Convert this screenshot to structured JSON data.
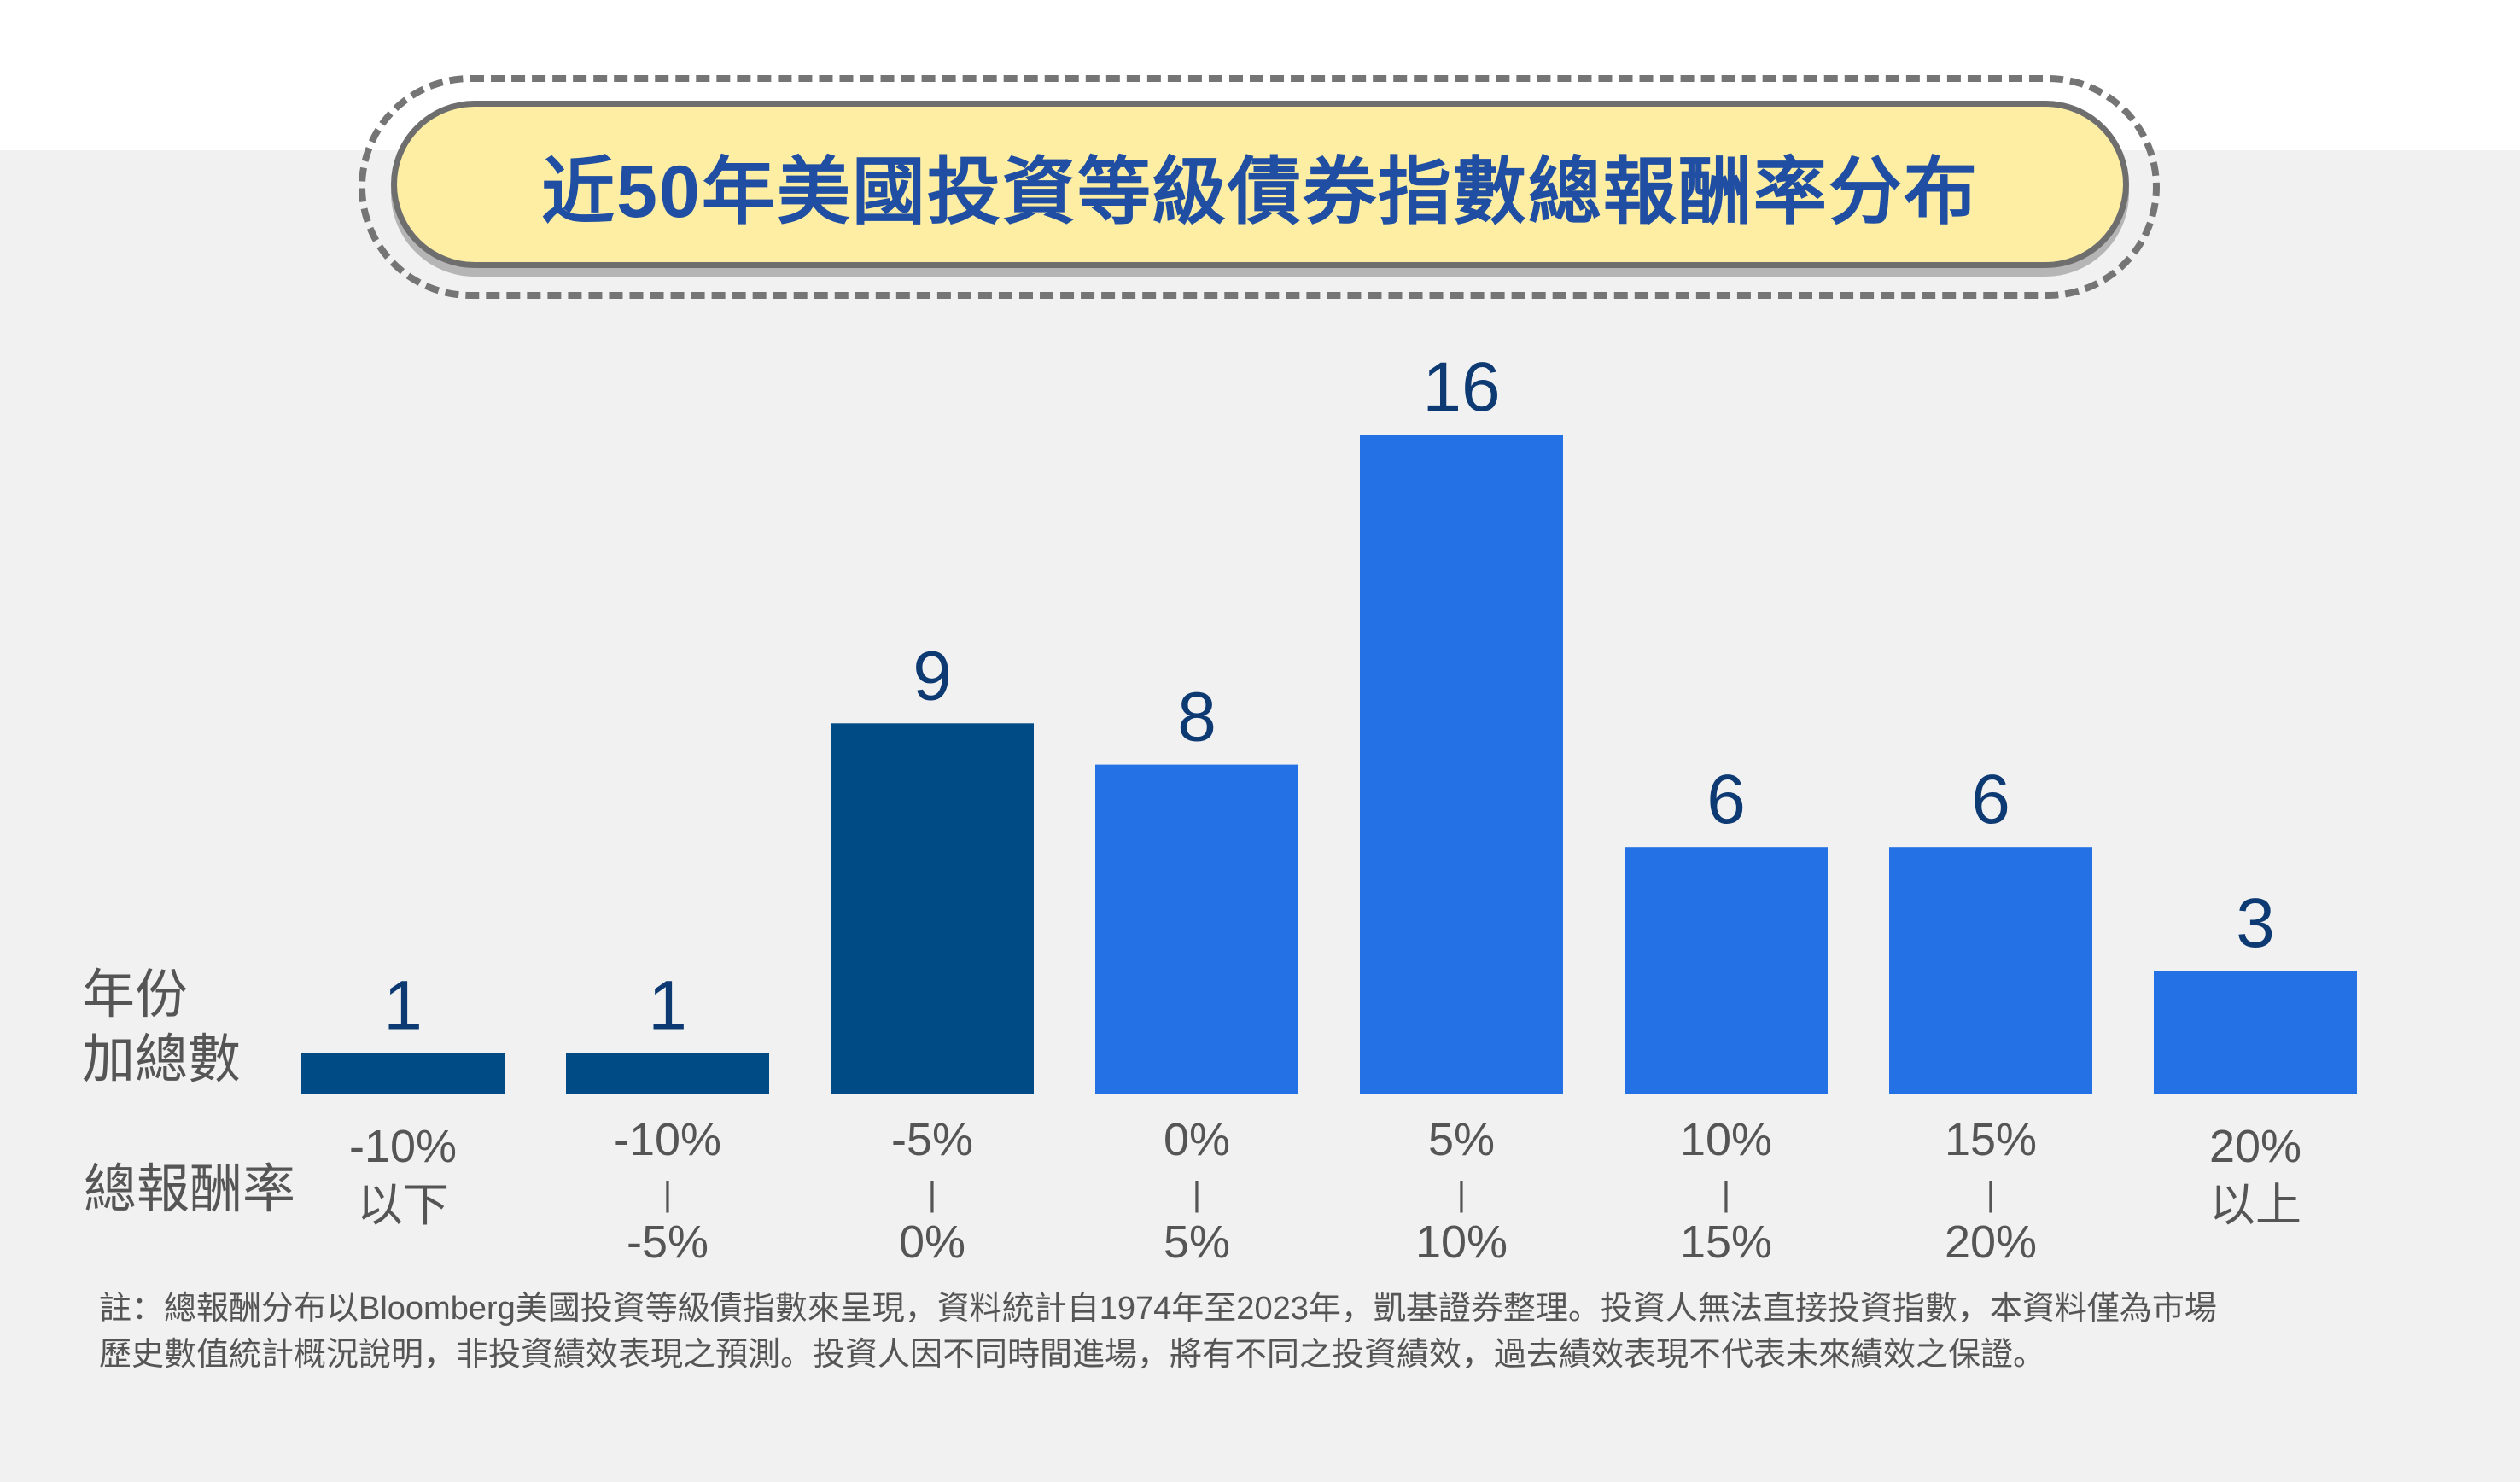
{
  "title": "近50年美國投資等級債券指數總報酬率分布",
  "row_labels": {
    "count_line1": "年份",
    "count_line2": "加總數",
    "return": "總報酬率"
  },
  "colors": {
    "dark": "#004a85",
    "bright": "#2471e6",
    "title_bg": "#fdeea3",
    "title_text": "#1f4ea3"
  },
  "chart_data": {
    "type": "bar",
    "title": "近50年美國投資等級債券指數總報酬率分布",
    "categories": [
      {
        "lines": [
          "-10%",
          "以下"
        ],
        "sep": false
      },
      {
        "lines": [
          "-10%",
          "|",
          "-5%"
        ],
        "sep": true
      },
      {
        "lines": [
          "-5%",
          "|",
          "0%"
        ],
        "sep": true
      },
      {
        "lines": [
          "0%",
          "|",
          "5%"
        ],
        "sep": true
      },
      {
        "lines": [
          "5%",
          "|",
          "10%"
        ],
        "sep": true
      },
      {
        "lines": [
          "10%",
          "|",
          "15%"
        ],
        "sep": true
      },
      {
        "lines": [
          "15%",
          "|",
          "20%"
        ],
        "sep": true
      },
      {
        "lines": [
          "20%",
          "以上"
        ],
        "sep": false
      }
    ],
    "values": [
      1,
      1,
      9,
      8,
      16,
      6,
      6,
      3
    ],
    "bar_colors": [
      "#004a85",
      "#004a85",
      "#004a85",
      "#2471e6",
      "#2471e6",
      "#2471e6",
      "#2471e6",
      "#2471e6"
    ],
    "ylim": [
      0,
      16
    ],
    "grid": false,
    "legend": "none"
  },
  "footnote": {
    "line1": "註：總報酬分布以Bloomberg美國投資等級債指數來呈現，資料統計自1974年至2023年，凱基證券整理。投資人無法直接投資指數，本資料僅為市場",
    "line2": "歷史數值統計概況說明，非投資績效表現之預測。投資人因不同時間進場，將有不同之投資績效，過去績效表現不代表未來績效之保證。"
  }
}
